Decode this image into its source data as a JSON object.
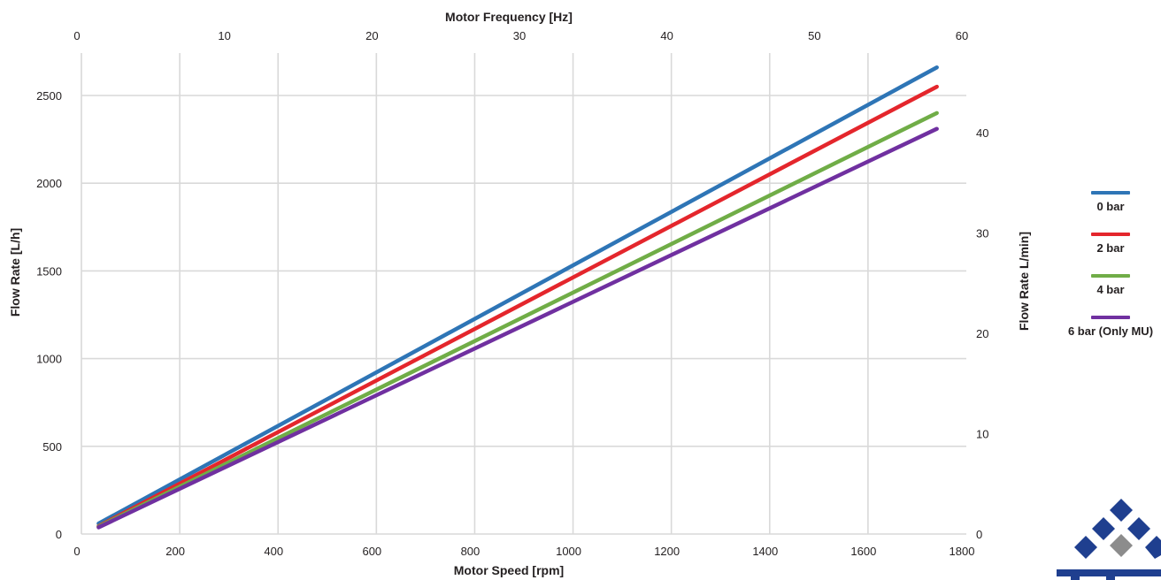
{
  "chart_data": {
    "type": "line",
    "xlabel": "Motor Speed [rpm]",
    "ylabel": "Flow Rate [L/h]",
    "x2label": "Motor Frequency [Hz]",
    "y2label": "Flow Rate L/min]",
    "xlim": [
      0,
      1800
    ],
    "ylim": [
      0,
      2500
    ],
    "x2lim": [
      0,
      60
    ],
    "y2lim": [
      0,
      40
    ],
    "xticks": [
      0,
      200,
      400,
      600,
      800,
      1000,
      1200,
      1400,
      1600,
      1800
    ],
    "xtick_labels": [
      "0",
      "200",
      "400",
      "600",
      "800",
      "1000",
      "1200",
      "1400",
      "1600",
      "1800"
    ],
    "yticks": [
      0,
      500,
      1000,
      1500,
      2000,
      2500
    ],
    "ytick_labels": [
      "0",
      "500",
      "1000",
      "1500",
      "2000",
      "2500"
    ],
    "x2ticks": [
      0,
      10,
      20,
      30,
      40,
      50,
      60
    ],
    "x2tick_labels": [
      "0",
      "10",
      "20",
      "30",
      "40",
      "50",
      "60"
    ],
    "y2ticks": [
      0,
      10,
      20,
      30,
      40
    ],
    "y2tick_labels": [
      "0",
      "10",
      "20",
      "30",
      "40"
    ],
    "grid": true,
    "legend_position": "right",
    "series": [
      {
        "name": "0 bar",
        "color": "#2e75b6",
        "x": [
          35,
          1740
        ],
        "y": [
          60,
          2660
        ]
      },
      {
        "name": "2 bar",
        "color": "#e4262c",
        "x": [
          35,
          1740
        ],
        "y": [
          45,
          2550
        ]
      },
      {
        "name": "4 bar",
        "color": "#70ad47",
        "x": [
          35,
          1740
        ],
        "y": [
          42,
          2400
        ]
      },
      {
        "name": "6 bar (Only MU)",
        "color": "#7030a0",
        "x": [
          35,
          1740
        ],
        "y": [
          38,
          2310
        ]
      }
    ]
  },
  "logo": {
    "icon": "company-logo-icon",
    "colors": [
      "#1f3f8f",
      "#8c8c8c"
    ]
  }
}
